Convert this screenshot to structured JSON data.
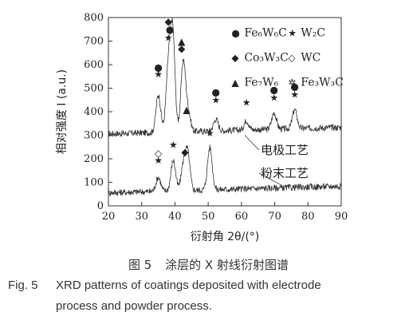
{
  "chart_data": {
    "type": "line",
    "xlabel": "衍射角 2θ/(°)",
    "ylabel": "相对强度 I (a.u.)",
    "xlim": [
      20,
      90
    ],
    "ylim": [
      0,
      800
    ],
    "xticks": [
      20,
      30,
      40,
      50,
      60,
      70,
      80,
      90
    ],
    "yticks": [
      0,
      100,
      200,
      300,
      400,
      500,
      600,
      700,
      800
    ],
    "grid": false,
    "legend_position": "top-right",
    "legend": [
      {
        "symbol": "●",
        "label": "Fe₆W₆C"
      },
      {
        "symbol": "★",
        "label": "W₂C"
      },
      {
        "symbol": "◆",
        "label": "Co₃W₃C"
      },
      {
        "symbol": "◇",
        "label": "WC"
      },
      {
        "symbol": "▲",
        "label": "Fe₇W₆"
      },
      {
        "symbol": "✲",
        "label": "Fe₃W₃C"
      }
    ],
    "series": [
      {
        "name": "电极工艺",
        "baseline": 320,
        "peaks": [
          {
            "x": 35.0,
            "y": 480
          },
          {
            "x": 38.0,
            "y": 580
          },
          {
            "x": 39.3,
            "y": 740
          },
          {
            "x": 42.5,
            "y": 620
          },
          {
            "x": 44.0,
            "y": 400
          },
          {
            "x": 52.3,
            "y": 370
          },
          {
            "x": 61.5,
            "y": 360
          },
          {
            "x": 69.8,
            "y": 390
          },
          {
            "x": 76.0,
            "y": 400
          }
        ]
      },
      {
        "name": "粉末工艺",
        "baseline": 70,
        "peaks": [
          {
            "x": 35.0,
            "y": 130
          },
          {
            "x": 39.5,
            "y": 200
          },
          {
            "x": 42.5,
            "y": 170
          },
          {
            "x": 43.8,
            "y": 230
          },
          {
            "x": 50.5,
            "y": 250
          }
        ]
      }
    ],
    "annotations": [
      {
        "x": 35.0,
        "y": 545,
        "text": "★"
      },
      {
        "x": 35.0,
        "y": 575,
        "text": "●"
      },
      {
        "x": 38.0,
        "y": 700,
        "text": "★"
      },
      {
        "x": 38.0,
        "y": 770,
        "text": "◆"
      },
      {
        "x": 38.5,
        "y": 735,
        "text": "●"
      },
      {
        "x": 42.0,
        "y": 655,
        "text": "◆"
      },
      {
        "x": 42.0,
        "y": 685,
        "text": "▲"
      },
      {
        "x": 43.5,
        "y": 395,
        "text": "▲"
      },
      {
        "x": 52.3,
        "y": 435,
        "text": "★"
      },
      {
        "x": 52.3,
        "y": 470,
        "text": "●"
      },
      {
        "x": 61.5,
        "y": 425,
        "text": "★"
      },
      {
        "x": 69.8,
        "y": 445,
        "text": "★"
      },
      {
        "x": 69.8,
        "y": 480,
        "text": "●"
      },
      {
        "x": 76.0,
        "y": 460,
        "text": "★"
      },
      {
        "x": 76.0,
        "y": 493,
        "text": "●"
      },
      {
        "x": 35.0,
        "y": 180,
        "text": "★"
      },
      {
        "x": 35.0,
        "y": 210,
        "text": "◇"
      },
      {
        "x": 39.5,
        "y": 245,
        "text": "★"
      },
      {
        "x": 43.0,
        "y": 215,
        "text": "◆"
      },
      {
        "x": 50.5,
        "y": 295,
        "text": "★"
      }
    ],
    "labels": [
      {
        "series": "电极工艺",
        "text": "电极工艺"
      },
      {
        "series": "粉末工艺",
        "text": "粉末工艺"
      }
    ]
  },
  "caption": {
    "cn_num": "图 5",
    "cn_text": "涂层的 X 射线衍射图谱",
    "en_num": "Fig. 5",
    "en_line1": "XRD patterns of coatings deposited with electrode",
    "en_line2": "process and powder process."
  }
}
